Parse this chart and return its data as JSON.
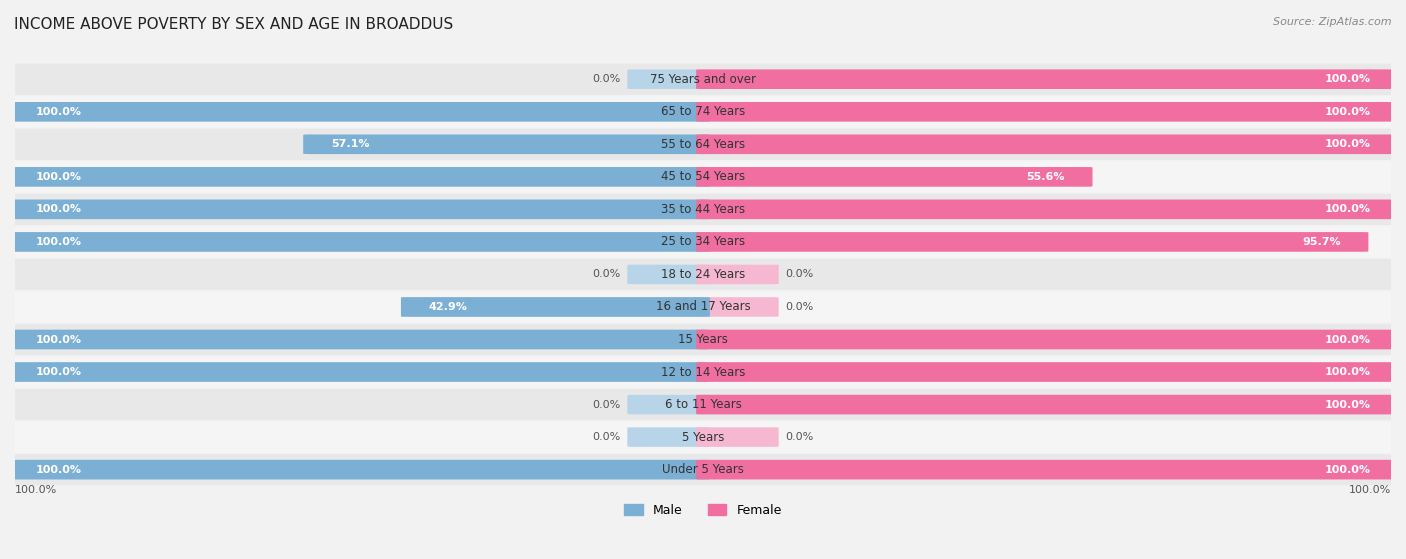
{
  "title": "INCOME ABOVE POVERTY BY SEX AND AGE IN BROADDUS",
  "source": "Source: ZipAtlas.com",
  "categories": [
    "Under 5 Years",
    "5 Years",
    "6 to 11 Years",
    "12 to 14 Years",
    "15 Years",
    "16 and 17 Years",
    "18 to 24 Years",
    "25 to 34 Years",
    "35 to 44 Years",
    "45 to 54 Years",
    "55 to 64 Years",
    "65 to 74 Years",
    "75 Years and over"
  ],
  "male_values": [
    100.0,
    0.0,
    0.0,
    100.0,
    100.0,
    42.9,
    0.0,
    100.0,
    100.0,
    100.0,
    57.1,
    100.0,
    0.0
  ],
  "female_values": [
    100.0,
    0.0,
    100.0,
    100.0,
    100.0,
    0.0,
    0.0,
    95.7,
    100.0,
    55.6,
    100.0,
    100.0,
    100.0
  ],
  "male_color": "#7bafd4",
  "female_color": "#f06fa0",
  "male_color_light": "#b8d4e8",
  "female_color_light": "#f5b8d0",
  "bg_color": "#f2f2f2",
  "title_fontsize": 11,
  "label_fontsize": 8.5,
  "value_fontsize": 8.0
}
